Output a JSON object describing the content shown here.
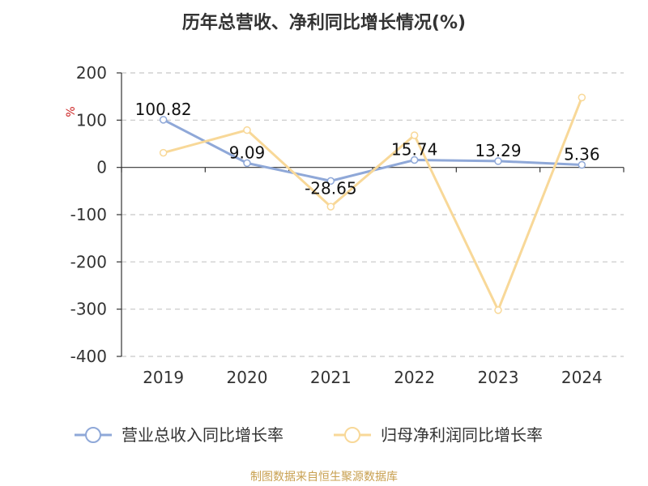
{
  "chart_data": {
    "type": "line",
    "title": "历年总营收、净利同比增长情况(%)",
    "ylabel": "%",
    "categories": [
      "2019",
      "2020",
      "2021",
      "2022",
      "2023",
      "2024"
    ],
    "ylim": [
      -400,
      200
    ],
    "yticks": [
      200,
      100,
      0,
      -100,
      -200,
      -300,
      -400
    ],
    "grid": true,
    "legend_position": "bottom",
    "series": [
      {
        "name": "营业总收入同比增长率",
        "values": [
          100.82,
          9.09,
          -28.65,
          15.74,
          13.29,
          5.36
        ],
        "labels": [
          "100.82",
          "9.09",
          "-28.65",
          "15.74",
          "13.29",
          "5.36"
        ],
        "color": "#8fa8d8"
      },
      {
        "name": "归母净利润同比增长率",
        "values": [
          31,
          79,
          -83,
          68,
          -302,
          148
        ],
        "color": "#f8d898"
      }
    ]
  },
  "source": "制图数据来自恒生聚源数据库"
}
